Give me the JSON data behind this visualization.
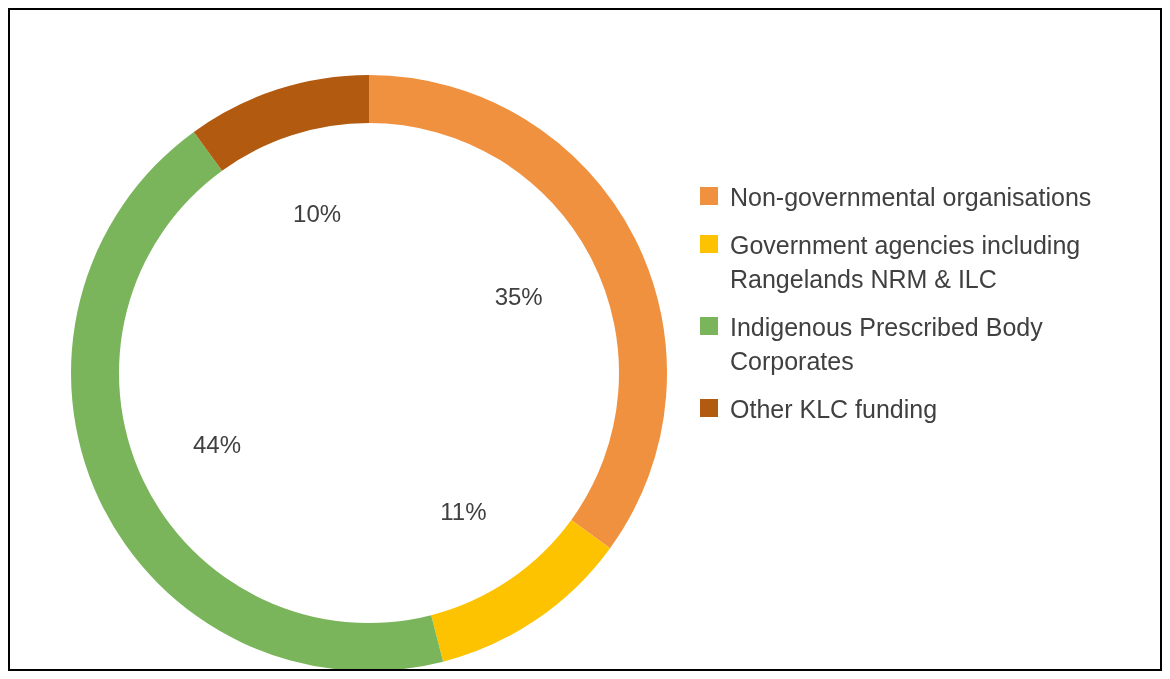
{
  "chart_data": {
    "type": "donut",
    "categories": [
      "Non-governmental organisations",
      "Government agencies including Rangelands NRM & ILC",
      "Indigenous Prescribed Body Corporates",
      "Other KLC funding"
    ],
    "values": [
      35,
      11,
      44,
      10
    ],
    "colors": [
      "#f0913f",
      "#fdc300",
      "#7ab55c",
      "#b15a10"
    ],
    "value_labels": [
      "35%",
      "11%",
      "44%",
      "10%"
    ],
    "legend": "right"
  }
}
